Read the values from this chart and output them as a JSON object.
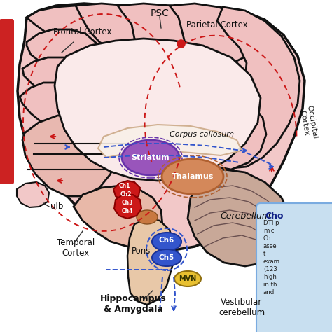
{
  "bg_color": "#ffffff",
  "brain_fill": "#f2c8c8",
  "brain_stroke": "#111111",
  "gyrus_fill": "#f0c0c0",
  "inner_fill": "#faf0f0",
  "cerebellum_fill": "#c8a898",
  "cerebellum_stroke": "#333333",
  "striatum_fill": "#9955bb",
  "striatum_stroke": "#6633aa",
  "thalamus_fill": "#d4885a",
  "thalamus_stroke": "#b06030",
  "ch1234_fill": "#cc1818",
  "ch56_fill": "#3355cc",
  "mvn_fill": "#e8c030",
  "mvn_stroke": "#907010",
  "sidebar_fill": "#cc2222",
  "info_box_fill": "#c8dff0",
  "info_box_stroke": "#7aabe0",
  "red_dot_color": "#cc1818",
  "arrow_red": "#cc1818",
  "arrow_blue": "#3355cc",
  "pons_fill": "#e8c8a8",
  "temporal_fill": "#e8b8b0",
  "title_psc": "PSC",
  "label_frontal": "Frontal Cortex",
  "label_parietal": "Parietal Cortex",
  "label_occipital": "Occipital\nCortex",
  "label_temporal": "Temporal\nCortex",
  "label_hippocampus": "Hippocampus\n& Amygdala",
  "label_corpus": "Corpus callosum",
  "label_striatum": "Striatum",
  "label_thalamus": "Thalamus",
  "label_ch6": "Ch6",
  "label_ch5": "Ch5",
  "label_mvn": "MVN",
  "label_pons": "Pons",
  "label_cerebellum": "Cerebellum",
  "label_vestibular": "Vestibular\ncerebellum",
  "label_bulb": "ulb",
  "info_title": "Cho",
  "info_lines": [
    "DTI p",
    "mic",
    "Ch",
    "asse",
    "t",
    "exam",
    "(123",
    "high",
    "in th",
    "and"
  ]
}
